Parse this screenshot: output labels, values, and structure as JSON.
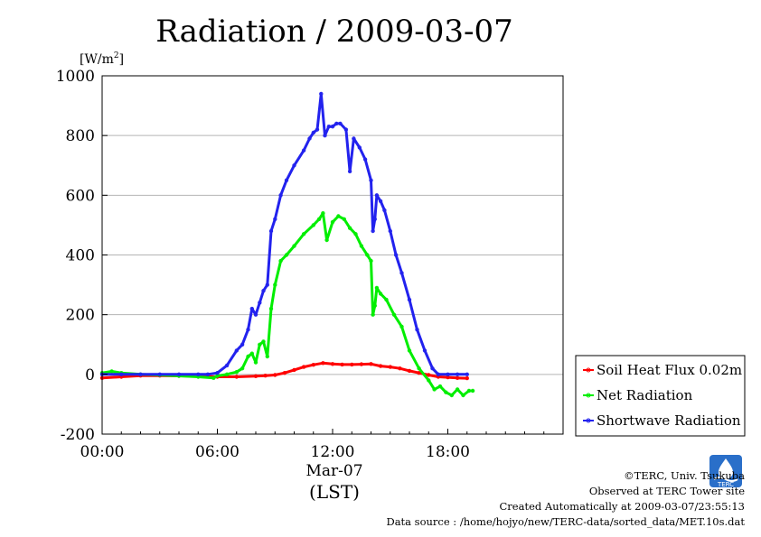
{
  "chart_data": {
    "type": "line",
    "title": "Radiation / 2009-03-07",
    "unit_label": "[W/m",
    "unit_label_sup": "2",
    "unit_label_close": "]",
    "ylim": [
      -200,
      1000
    ],
    "yticks": [
      -200,
      0,
      200,
      400,
      600,
      800,
      1000
    ],
    "ytick_labels": [
      "-200",
      "0",
      "200",
      "400",
      "600",
      "800",
      "1000"
    ],
    "xlim": [
      0,
      24
    ],
    "xticks": [
      0,
      6,
      12,
      18
    ],
    "xtick_labels": [
      "00:00",
      "06:00",
      "12:00",
      "18:00"
    ],
    "date_label": "Mar-07",
    "xlabel": "(LST)",
    "grid": true,
    "legend_position": "right",
    "series": [
      {
        "name": "Soil Heat Flux 0.02m",
        "color": "#ff0000",
        "points": [
          [
            0,
            -12
          ],
          [
            1,
            -8
          ],
          [
            2,
            -4
          ],
          [
            3,
            -4
          ],
          [
            4,
            -5
          ],
          [
            5,
            -6
          ],
          [
            6,
            -8
          ],
          [
            7,
            -8
          ],
          [
            8,
            -6
          ],
          [
            8.5,
            -4
          ],
          [
            9,
            -2
          ],
          [
            9.5,
            5
          ],
          [
            10,
            15
          ],
          [
            10.5,
            25
          ],
          [
            11,
            32
          ],
          [
            11.5,
            38
          ],
          [
            12,
            35
          ],
          [
            12.5,
            33
          ],
          [
            13,
            33
          ],
          [
            13.5,
            34
          ],
          [
            14,
            35
          ],
          [
            14.5,
            28
          ],
          [
            15,
            25
          ],
          [
            15.5,
            20
          ],
          [
            16,
            12
          ],
          [
            16.5,
            5
          ],
          [
            17,
            -2
          ],
          [
            17.5,
            -8
          ],
          [
            18,
            -10
          ],
          [
            18.5,
            -12
          ],
          [
            19,
            -13
          ]
        ]
      },
      {
        "name": "Net Radiation",
        "color": "#00ee00",
        "points": [
          [
            0,
            5
          ],
          [
            0.5,
            10
          ],
          [
            1,
            5
          ],
          [
            2,
            0
          ],
          [
            3,
            -2
          ],
          [
            4,
            -5
          ],
          [
            5,
            -8
          ],
          [
            5.8,
            -12
          ],
          [
            6,
            -5
          ],
          [
            6.5,
            0
          ],
          [
            7,
            8
          ],
          [
            7.3,
            20
          ],
          [
            7.6,
            60
          ],
          [
            7.8,
            70
          ],
          [
            8,
            40
          ],
          [
            8.2,
            100
          ],
          [
            8.4,
            110
          ],
          [
            8.6,
            60
          ],
          [
            8.8,
            220
          ],
          [
            9,
            300
          ],
          [
            9.3,
            380
          ],
          [
            9.6,
            400
          ],
          [
            10,
            430
          ],
          [
            10.5,
            470
          ],
          [
            11,
            500
          ],
          [
            11.3,
            520
          ],
          [
            11.5,
            540
          ],
          [
            11.7,
            450
          ],
          [
            12,
            510
          ],
          [
            12.3,
            530
          ],
          [
            12.6,
            520
          ],
          [
            12.9,
            490
          ],
          [
            13.2,
            470
          ],
          [
            13.5,
            430
          ],
          [
            13.8,
            400
          ],
          [
            14,
            380
          ],
          [
            14.1,
            200
          ],
          [
            14.2,
            230
          ],
          [
            14.3,
            290
          ],
          [
            14.5,
            270
          ],
          [
            14.8,
            250
          ],
          [
            15.2,
            200
          ],
          [
            15.6,
            160
          ],
          [
            16,
            80
          ],
          [
            16.5,
            20
          ],
          [
            17,
            -20
          ],
          [
            17.3,
            -50
          ],
          [
            17.6,
            -40
          ],
          [
            17.9,
            -60
          ],
          [
            18.2,
            -70
          ],
          [
            18.5,
            -50
          ],
          [
            18.8,
            -70
          ],
          [
            19.1,
            -55
          ],
          [
            19.3,
            -55
          ]
        ]
      },
      {
        "name": "Shortwave Radiation",
        "color": "#2222ee",
        "points": [
          [
            0,
            0
          ],
          [
            1,
            0
          ],
          [
            2,
            0
          ],
          [
            3,
            0
          ],
          [
            4,
            0
          ],
          [
            5,
            0
          ],
          [
            5.5,
            0
          ],
          [
            6,
            5
          ],
          [
            6.5,
            30
          ],
          [
            7,
            80
          ],
          [
            7.3,
            100
          ],
          [
            7.6,
            150
          ],
          [
            7.8,
            220
          ],
          [
            8,
            200
          ],
          [
            8.2,
            240
          ],
          [
            8.4,
            280
          ],
          [
            8.6,
            300
          ],
          [
            8.8,
            480
          ],
          [
            9,
            520
          ],
          [
            9.3,
            600
          ],
          [
            9.6,
            650
          ],
          [
            10,
            700
          ],
          [
            10.5,
            750
          ],
          [
            10.8,
            790
          ],
          [
            11,
            810
          ],
          [
            11.2,
            820
          ],
          [
            11.4,
            940
          ],
          [
            11.6,
            800
          ],
          [
            11.8,
            830
          ],
          [
            12,
            830
          ],
          [
            12.2,
            840
          ],
          [
            12.4,
            840
          ],
          [
            12.7,
            820
          ],
          [
            12.9,
            680
          ],
          [
            13.1,
            790
          ],
          [
            13.4,
            760
          ],
          [
            13.7,
            720
          ],
          [
            14,
            650
          ],
          [
            14.1,
            480
          ],
          [
            14.2,
            520
          ],
          [
            14.3,
            600
          ],
          [
            14.5,
            580
          ],
          [
            14.7,
            550
          ],
          [
            15,
            480
          ],
          [
            15.3,
            400
          ],
          [
            15.6,
            340
          ],
          [
            16,
            250
          ],
          [
            16.4,
            150
          ],
          [
            16.8,
            80
          ],
          [
            17.2,
            20
          ],
          [
            17.5,
            0
          ],
          [
            18,
            0
          ],
          [
            18.5,
            0
          ],
          [
            19,
            0
          ]
        ]
      }
    ]
  },
  "credits": {
    "line1": "©TERC, Univ. Tsukuba",
    "line2": "Observed at TERC Tower site",
    "line3": "Created Automatically at 2009-03-07/23:55:13",
    "line4": "Data source : /home/hojyo/new/TERC-data/sorted_data/MET.10s.dat"
  },
  "logo_text": "TERC"
}
